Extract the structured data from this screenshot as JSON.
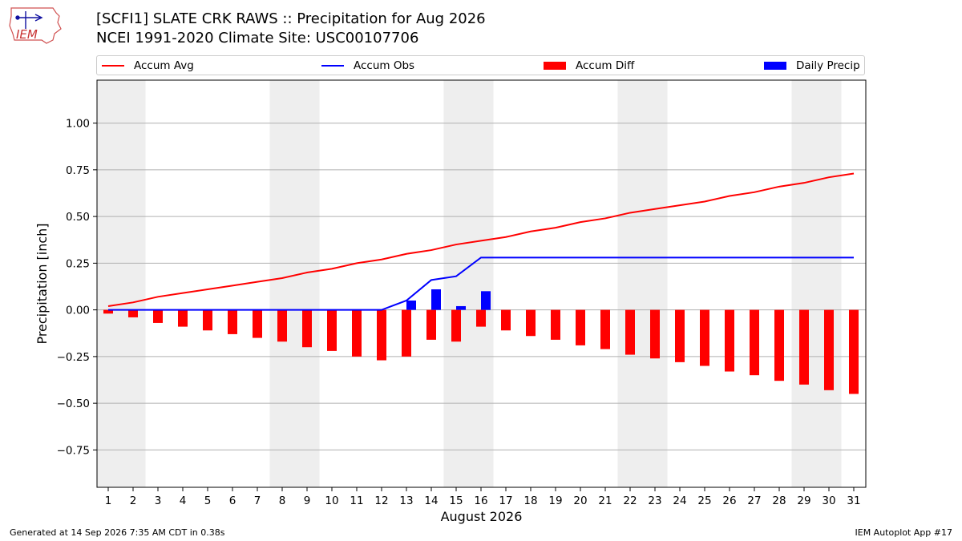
{
  "header": {
    "title_line1": "[SCFI1] SLATE CRK RAWS :: Precipitation for Aug 2026",
    "title_line2": "NCEI 1991-2020 Climate Site: USC00107706",
    "logo_text": "IEM"
  },
  "footer": {
    "generated": "Generated at 14 Sep 2026 7:35 AM CDT in 0.38s",
    "app": "IEM Autoplot App #17"
  },
  "chart_data": {
    "type": "bar",
    "xlabel": "August 2026",
    "ylabel": "Precipitation [inch]",
    "ylim": [
      -0.95,
      1.23
    ],
    "yticks": [
      -0.75,
      -0.5,
      -0.25,
      0.0,
      0.25,
      0.5,
      0.75,
      1.0
    ],
    "ytick_labels": [
      "−0.75",
      "−0.50",
      "−0.25",
      "0.00",
      "0.25",
      "0.50",
      "0.75",
      "1.00"
    ],
    "grid": true,
    "legend_placement": "top",
    "days": [
      1,
      2,
      3,
      4,
      5,
      6,
      7,
      8,
      9,
      10,
      11,
      12,
      13,
      14,
      15,
      16,
      17,
      18,
      19,
      20,
      21,
      22,
      23,
      24,
      25,
      26,
      27,
      28,
      29,
      30,
      31
    ],
    "weekend_days": [
      1,
      2,
      8,
      9,
      15,
      16,
      22,
      23,
      29,
      30
    ],
    "series": [
      {
        "name": "Accum Avg",
        "kind": "line",
        "color": "#ff0000",
        "values": [
          0.02,
          0.04,
          0.07,
          0.09,
          0.11,
          0.13,
          0.15,
          0.17,
          0.2,
          0.22,
          0.25,
          0.27,
          0.3,
          0.32,
          0.35,
          0.37,
          0.39,
          0.42,
          0.44,
          0.47,
          0.49,
          0.52,
          0.54,
          0.56,
          0.58,
          0.61,
          0.63,
          0.66,
          0.68,
          0.71,
          0.73
        ]
      },
      {
        "name": "Accum Obs",
        "kind": "line",
        "color": "#0000ff",
        "values": [
          0,
          0,
          0,
          0,
          0,
          0,
          0,
          0,
          0,
          0,
          0,
          0,
          0.05,
          0.16,
          0.18,
          0.28,
          0.28,
          0.28,
          0.28,
          0.28,
          0.28,
          0.28,
          0.28,
          0.28,
          0.28,
          0.28,
          0.28,
          0.28,
          0.28,
          0.28,
          0.28
        ]
      },
      {
        "name": "Accum Diff",
        "kind": "bar",
        "color": "#ff0000",
        "values": [
          -0.02,
          -0.04,
          -0.07,
          -0.09,
          -0.11,
          -0.13,
          -0.15,
          -0.17,
          -0.2,
          -0.22,
          -0.25,
          -0.27,
          -0.25,
          -0.16,
          -0.17,
          -0.09,
          -0.11,
          -0.14,
          -0.16,
          -0.19,
          -0.21,
          -0.24,
          -0.26,
          -0.28,
          -0.3,
          -0.33,
          -0.35,
          -0.38,
          -0.4,
          -0.43,
          -0.45
        ]
      },
      {
        "name": "Daily Precip",
        "kind": "bar",
        "color": "#0000ff",
        "values": [
          0,
          0,
          0,
          0,
          0,
          0,
          0,
          0,
          0,
          0,
          0,
          0,
          0.05,
          0.11,
          0.02,
          0.1,
          0,
          0,
          0,
          0,
          0,
          0,
          0,
          0,
          0,
          0,
          0,
          0,
          0,
          0,
          0
        ]
      }
    ]
  }
}
